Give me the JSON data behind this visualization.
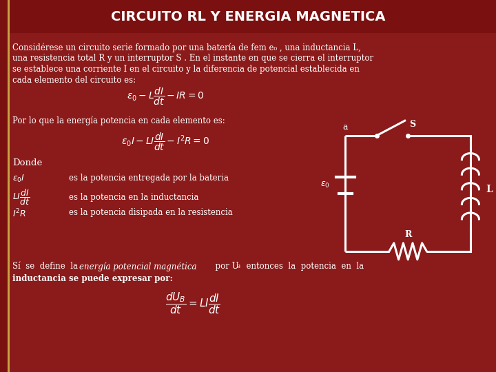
{
  "title": "CIRCUITO RL Y ENERGIA MAGNETICA",
  "title_bg": "#7a1010",
  "title_color": "#ffffff",
  "title_fontsize": 14,
  "body_bg": "#8b1a1a",
  "left_bar_color": "#c8a040",
  "text_color": "#ffffff",
  "formula_color": "#ffffff",
  "para1": "Considérese un circuito serie formado por una batería de fem e₀ , una inductancia L,",
  "para2": "una resistencia total R y un interruptor S . En el instante en que se cierra el interruptor",
  "para3": "se establece una corriente I en el circuito y la diferencia de potencial establecida en",
  "para4": "cada elemento del circuito es:",
  "formula1": "$\\varepsilon_0 - L\\dfrac{dI}{dt} - IR = 0$",
  "text2": "Por lo que la energía potencia en cada elemento es:",
  "formula2": "$\\varepsilon_0 I - LI\\dfrac{dI}{dt} - I^2 R = 0$",
  "donde": "Donde",
  "b1_lbl": "$\\varepsilon_0 I$",
  "b1_txt": "es la potencia entregada por la bateria",
  "b2_lbl": "$LI\\dfrac{dI}{dt}$",
  "b2_txt": "es la potencia en la inductancia",
  "b3_lbl": "$I^2 R$",
  "b3_txt": "es la potencia disipada en la resistencia",
  "bottom1a": "Sí  se  define  la  ",
  "bottom1b": "energía potencial magnética",
  "bottom1c": "  por U",
  "bottom1d": "B",
  "bottom1e": "  entonces  la  potencia  en  la",
  "bottom2": "inductancia se puede expresar por:",
  "bot_formula": "$\\dfrac{dU_B}{dt} = LI\\dfrac{dI}{dt}$"
}
